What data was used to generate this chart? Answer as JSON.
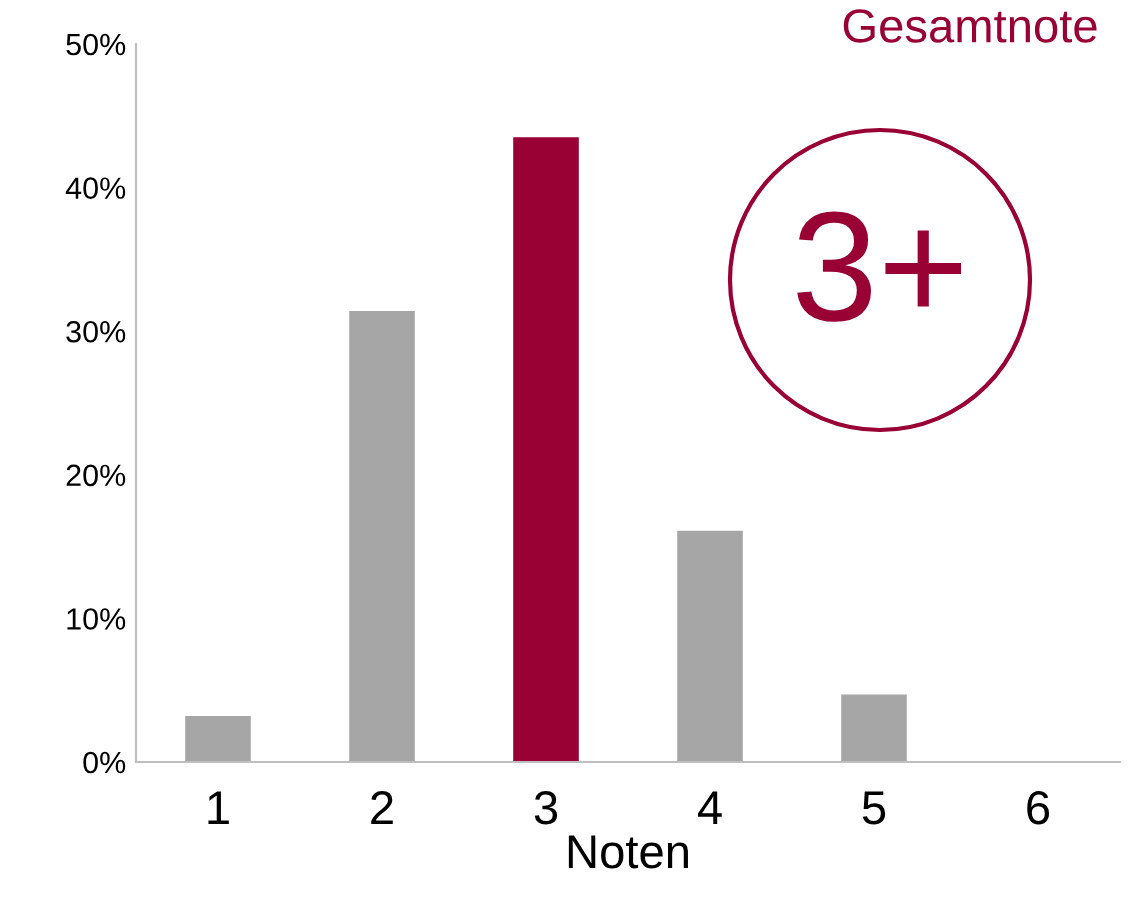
{
  "chart_data": {
    "type": "bar",
    "xlabel": "Noten",
    "categories": [
      "1",
      "2",
      "3",
      "4",
      "5",
      "6"
    ],
    "values": [
      3.2,
      31.4,
      43.5,
      16.1,
      4.7,
      0
    ],
    "colors": [
      "#a6a6a6",
      "#a6a6a6",
      "#990033",
      "#a6a6a6",
      "#a6a6a6",
      "#a6a6a6"
    ],
    "ylim": [
      0,
      50
    ],
    "yticks": [
      {
        "value": 0,
        "label": "0%"
      },
      {
        "value": 10,
        "label": "10%"
      },
      {
        "value": 20,
        "label": "20%"
      },
      {
        "value": 30,
        "label": "30%"
      },
      {
        "value": 40,
        "label": "40%"
      },
      {
        "value": 50,
        "label": "50%"
      }
    ],
    "grid": false,
    "legend": false,
    "annotations": [
      "Gesamtnote",
      "3+"
    ]
  }
}
